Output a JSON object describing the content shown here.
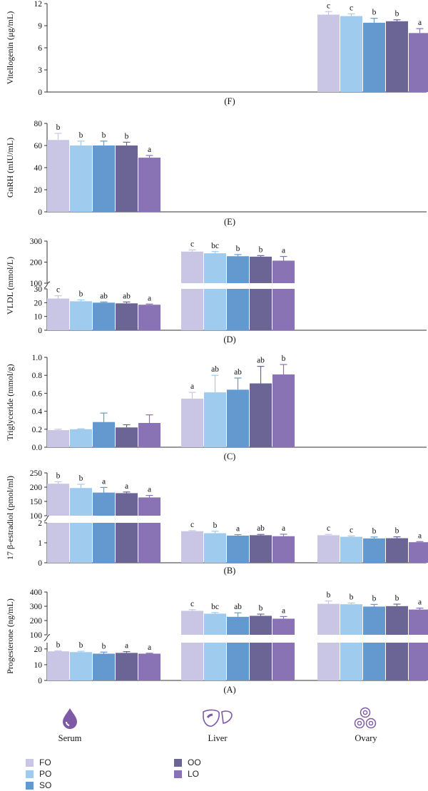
{
  "colors": {
    "FO": "#c8c6e4",
    "PO": "#9ecbee",
    "SO": "#6399cf",
    "OO": "#6a6595",
    "LO": "#8a73b5",
    "axis": "#333333",
    "icon": "#7e5aa6"
  },
  "groups": [
    "FO",
    "PO",
    "SO",
    "OO",
    "LO"
  ],
  "legend": {
    "items": [
      {
        "key": "FO",
        "label": "FO"
      },
      {
        "key": "PO",
        "label": "PO"
      },
      {
        "key": "SO",
        "label": "SO"
      },
      {
        "key": "OO",
        "label": "OO"
      },
      {
        "key": "LO",
        "label": "LO"
      }
    ]
  },
  "tissues": {
    "serum": {
      "label": "Serum",
      "icon": "blood-drop-icon"
    },
    "liver": {
      "label": "Liver",
      "icon": "liver-icon"
    },
    "ovary": {
      "label": "Ovary",
      "icon": "ovary-icon"
    }
  },
  "chart_data": [
    {
      "panel": "(F)",
      "type": "bar",
      "ylabel": "Vitellogenin (μg/mL)",
      "ylim": [
        0,
        12
      ],
      "yticks": [
        "0",
        "3",
        "6",
        "9",
        "12"
      ],
      "tissues": [
        "Serum",
        "Liver",
        "Ovary"
      ],
      "series": [
        {
          "tissue": "Ovary",
          "values": [
            10.5,
            10.3,
            9.4,
            9.6,
            8.0
          ],
          "errors": [
            0.4,
            0.3,
            0.6,
            0.2,
            0.6
          ],
          "letters": [
            "c",
            "c",
            "b",
            "b",
            "a"
          ]
        }
      ]
    },
    {
      "panel": "(E)",
      "type": "bar",
      "ylabel": "GnRH (mIU/mL)",
      "ylim": [
        0,
        80
      ],
      "yticks": [
        "0",
        "20",
        "40",
        "60",
        "80"
      ],
      "series": [
        {
          "tissue": "Serum",
          "values": [
            65,
            60,
            60,
            60,
            49
          ],
          "errors": [
            6,
            4,
            4,
            3,
            2
          ],
          "letters": [
            "b",
            "b",
            "b",
            "b",
            "a"
          ]
        }
      ]
    },
    {
      "panel": "(D)",
      "type": "bar",
      "ylabel": "VLDL (mmol/L)",
      "ylim_lower": [
        0,
        30
      ],
      "ylim_upper": [
        100,
        300
      ],
      "yticks_lower": [
        "0",
        "10",
        "20",
        "30"
      ],
      "yticks_upper": [
        "100",
        "200",
        "300"
      ],
      "series": [
        {
          "tissue": "Serum",
          "values": [
            23,
            21,
            20,
            19.5,
            18.5
          ],
          "errors": [
            2,
            1,
            0.5,
            1,
            0.5
          ],
          "letters": [
            "c",
            "b",
            "ab",
            "ab",
            "a"
          ]
        },
        {
          "tissue": "Liver",
          "values": [
            250,
            242,
            228,
            226,
            207
          ],
          "errors": [
            8,
            8,
            8,
            5,
            20
          ],
          "letters": [
            "c",
            "bc",
            "b",
            "b",
            "a"
          ]
        }
      ]
    },
    {
      "panel": "(C)",
      "type": "bar",
      "ylabel": "Triglyceride (mmol/g)",
      "ylim": [
        0,
        1.0
      ],
      "yticks": [
        "0.0",
        "0.2",
        "0.4",
        "0.6",
        "0.8",
        "1.0"
      ],
      "series": [
        {
          "tissue": "Serum",
          "values": [
            0.19,
            0.2,
            0.28,
            0.22,
            0.27
          ],
          "errors": [
            0.01,
            0.005,
            0.1,
            0.03,
            0.09
          ],
          "letters": [
            "",
            "",
            "",
            "",
            ""
          ]
        },
        {
          "tissue": "Liver",
          "values": [
            0.54,
            0.61,
            0.64,
            0.71,
            0.81
          ],
          "errors": [
            0.07,
            0.19,
            0.13,
            0.19,
            0.11
          ],
          "letters": [
            "a",
            "ab",
            "ab",
            "ab",
            "b"
          ]
        }
      ]
    },
    {
      "panel": "(B)",
      "type": "bar",
      "ylabel": "17 β-estradiol (pmol/ml)",
      "ylim_lower": [
        0,
        2
      ],
      "ylim_upper": [
        100,
        250
      ],
      "yticks_lower": [
        "0",
        "1",
        "2"
      ],
      "yticks_upper": [
        "100",
        "150",
        "200",
        "250"
      ],
      "series": [
        {
          "tissue": "Serum",
          "values": [
            212,
            197,
            181,
            179,
            164
          ],
          "errors": [
            7,
            13,
            18,
            4,
            7
          ],
          "letters": [
            "b",
            "b",
            "a",
            "a",
            "a"
          ]
        },
        {
          "tissue": "Liver",
          "values": [
            1.58,
            1.48,
            1.36,
            1.38,
            1.33
          ],
          "errors": [
            0.03,
            0.1,
            0.05,
            0.04,
            0.1
          ],
          "letters": [
            "c",
            "b",
            "a",
            "ab",
            "a"
          ]
        },
        {
          "tissue": "Ovary",
          "values": [
            1.38,
            1.3,
            1.22,
            1.23,
            1.03
          ],
          "errors": [
            0.04,
            0.04,
            0.07,
            0.07,
            0.03
          ],
          "letters": [
            "c",
            "c",
            "b",
            "b",
            "a"
          ]
        }
      ]
    },
    {
      "panel": "(A)",
      "type": "bar",
      "ylabel": "Progesterone (ng/mL)",
      "ylim_lower": [
        0,
        24
      ],
      "ylim_upper": [
        100,
        400
      ],
      "yticks_lower": [
        "0",
        "10",
        "20"
      ],
      "yticks_upper": [
        "100",
        "200",
        "300",
        "400"
      ],
      "series": [
        {
          "tissue": "Serum",
          "values": [
            18.5,
            18.0,
            17.0,
            17.5,
            17.0
          ],
          "errors": [
            0.3,
            0.5,
            1.0,
            0.8,
            0.3
          ],
          "letters": [
            "b",
            "b",
            "b",
            "a",
            "a"
          ]
        },
        {
          "tissue": "Liver",
          "values": [
            268,
            248,
            226,
            233,
            213
          ],
          "errors": [
            8,
            8,
            28,
            12,
            15
          ],
          "letters": [
            "c",
            "bc",
            "ab",
            "b",
            "a"
          ]
        },
        {
          "tissue": "Ovary",
          "values": [
            317,
            314,
            298,
            301,
            277
          ],
          "errors": [
            20,
            9,
            15,
            14,
            10
          ],
          "letters": [
            "b",
            "b",
            "b",
            "b",
            "a"
          ]
        }
      ]
    }
  ]
}
